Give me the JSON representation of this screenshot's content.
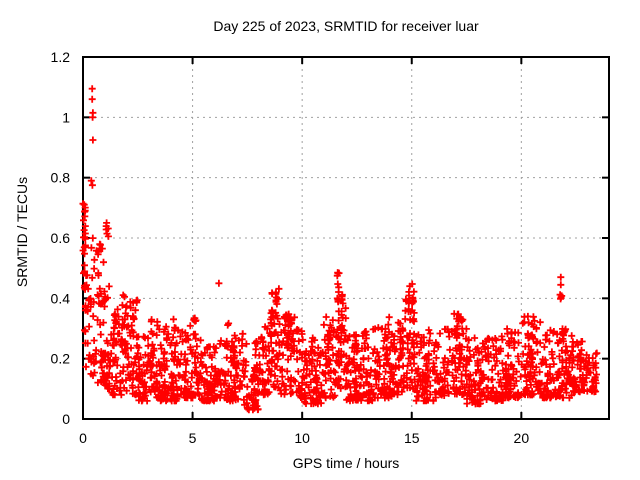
{
  "chart_data": {
    "type": "scatter",
    "title": "Day 225 of 2023, SRMTID for receiver luar",
    "xlabel": "GPS time / hours",
    "ylabel": "SRMTID / TECUs",
    "xlim": [
      0,
      24
    ],
    "ylim": [
      0,
      1.2
    ],
    "xticks": [
      0,
      5,
      10,
      15,
      20
    ],
    "xtick_labels": [
      "0",
      "5",
      "10",
      "15",
      "20"
    ],
    "ytick_values": [
      0,
      0.2,
      0.4,
      0.6,
      0.8,
      1,
      1.2
    ],
    "ytick_labels": [
      "0",
      "0.2",
      "0.4",
      "0.6",
      "0.8",
      "1",
      "1.2"
    ],
    "grid": "dotted",
    "grid_color": "#a0a0a0",
    "legend": "none",
    "marker": "plus",
    "marker_color": "#ff0000",
    "axis_color": "#000000",
    "background_color": "#ffffff",
    "outlier_points_format": "[hour, SRMTID_TECUs] single notable points read from the plot",
    "outlier_points": [
      [
        0.42,
        1.095
      ],
      [
        0.42,
        1.06
      ],
      [
        0.45,
        1.015
      ],
      [
        0.44,
        1.0
      ],
      [
        0.45,
        0.925
      ],
      [
        0.38,
        0.79
      ],
      [
        0.43,
        0.775
      ],
      [
        6.2,
        0.45
      ],
      [
        20.3,
        0.34
      ],
      [
        21.8,
        0.47
      ],
      [
        21.8,
        0.445
      ],
      [
        21.77,
        0.412
      ],
      [
        21.81,
        0.403
      ],
      [
        21.84,
        0.408
      ],
      [
        21.79,
        0.398
      ]
    ],
    "density_bands_format": "[hour_start, hour_end, point_count, y_min, y_max, bottom_bias_power] dense scatter band envelope estimated from the plot",
    "density_bands": [
      [
        0.0,
        0.12,
        26,
        0.2,
        0.72,
        0.55
      ],
      [
        0.1,
        0.35,
        20,
        0.15,
        0.6,
        1.1
      ],
      [
        0.35,
        0.65,
        22,
        0.14,
        0.62,
        1.2
      ],
      [
        0.65,
        1.0,
        34,
        0.12,
        0.58,
        1.5
      ],
      [
        1.0,
        1.3,
        26,
        0.1,
        0.46,
        1.6
      ],
      [
        1.05,
        1.22,
        6,
        0.56,
        0.67,
        1.0
      ],
      [
        1.3,
        1.8,
        40,
        0.08,
        0.38,
        2.0
      ],
      [
        1.8,
        2.1,
        22,
        0.08,
        0.42,
        1.9
      ],
      [
        2.1,
        2.5,
        30,
        0.08,
        0.4,
        1.9
      ],
      [
        2.5,
        3.0,
        46,
        0.06,
        0.3,
        1.8
      ],
      [
        3.0,
        3.5,
        46,
        0.07,
        0.33,
        1.8
      ],
      [
        3.5,
        4.0,
        46,
        0.06,
        0.31,
        1.8
      ],
      [
        4.0,
        4.5,
        44,
        0.06,
        0.3,
        1.9
      ],
      [
        4.5,
        5.0,
        40,
        0.07,
        0.33,
        1.9
      ],
      [
        5.0,
        5.4,
        28,
        0.08,
        0.35,
        1.9
      ],
      [
        5.4,
        6.0,
        50,
        0.06,
        0.24,
        1.6
      ],
      [
        6.0,
        6.5,
        38,
        0.07,
        0.28,
        1.7
      ],
      [
        6.5,
        7.3,
        64,
        0.06,
        0.32,
        1.8
      ],
      [
        7.3,
        8.0,
        58,
        0.03,
        0.26,
        1.6
      ],
      [
        8.0,
        8.5,
        40,
        0.08,
        0.32,
        1.6
      ],
      [
        8.5,
        8.95,
        32,
        0.1,
        0.44,
        1.3
      ],
      [
        8.95,
        9.7,
        52,
        0.08,
        0.35,
        1.4
      ],
      [
        9.7,
        10.1,
        30,
        0.07,
        0.3,
        1.5
      ],
      [
        10.1,
        10.9,
        64,
        0.05,
        0.24,
        1.6
      ],
      [
        10.9,
        11.5,
        44,
        0.07,
        0.35,
        1.8
      ],
      [
        11.5,
        12.0,
        38,
        0.1,
        0.42,
        1.5
      ],
      [
        12.0,
        12.6,
        50,
        0.06,
        0.28,
        1.6
      ],
      [
        12.6,
        13.2,
        50,
        0.06,
        0.3,
        1.6
      ],
      [
        13.2,
        14.1,
        72,
        0.07,
        0.33,
        1.7
      ],
      [
        14.1,
        14.7,
        46,
        0.08,
        0.32,
        1.6
      ],
      [
        14.7,
        15.2,
        36,
        0.1,
        0.43,
        1.2
      ],
      [
        15.2,
        16.0,
        60,
        0.06,
        0.28,
        1.6
      ],
      [
        16.0,
        16.7,
        50,
        0.07,
        0.3,
        1.7
      ],
      [
        16.7,
        17.5,
        60,
        0.08,
        0.35,
        1.5
      ],
      [
        17.5,
        18.3,
        64,
        0.05,
        0.27,
        1.6
      ],
      [
        18.3,
        19.2,
        68,
        0.06,
        0.28,
        1.7
      ],
      [
        19.2,
        20.0,
        64,
        0.07,
        0.3,
        1.7
      ],
      [
        20.0,
        20.9,
        68,
        0.08,
        0.34,
        1.7
      ],
      [
        20.9,
        21.6,
        54,
        0.07,
        0.3,
        1.7
      ],
      [
        21.6,
        22.3,
        54,
        0.07,
        0.3,
        1.6
      ],
      [
        22.3,
        23.0,
        58,
        0.09,
        0.26,
        1.5
      ],
      [
        23.0,
        23.45,
        34,
        0.09,
        0.22,
        1.4
      ]
    ],
    "density_columns_format": "[hour_center, hour_width, point_count, y_min, y_max] vertical spike clusters read from the plot",
    "density_columns": [
      [
        0.75,
        0.25,
        12,
        0.38,
        0.58
      ],
      [
        1.45,
        0.12,
        8,
        0.2,
        0.42
      ],
      [
        1.9,
        0.12,
        8,
        0.15,
        0.42
      ],
      [
        2.25,
        0.18,
        10,
        0.2,
        0.4
      ],
      [
        4.2,
        0.15,
        9,
        0.18,
        0.35
      ],
      [
        5.15,
        0.12,
        8,
        0.15,
        0.35
      ],
      [
        6.85,
        0.25,
        10,
        0.18,
        0.32
      ],
      [
        8.62,
        0.1,
        12,
        0.18,
        0.445
      ],
      [
        8.8,
        0.1,
        8,
        0.2,
        0.42
      ],
      [
        9.35,
        0.4,
        18,
        0.27,
        0.345
      ],
      [
        10.5,
        0.18,
        8,
        0.14,
        0.27
      ],
      [
        11.2,
        0.12,
        8,
        0.18,
        0.31
      ],
      [
        11.65,
        0.1,
        16,
        0.18,
        0.52
      ],
      [
        11.82,
        0.09,
        10,
        0.18,
        0.47
      ],
      [
        12.35,
        0.18,
        8,
        0.15,
        0.29
      ],
      [
        13.9,
        0.14,
        10,
        0.18,
        0.35
      ],
      [
        14.5,
        0.12,
        8,
        0.15,
        0.3
      ],
      [
        14.88,
        0.09,
        9,
        0.22,
        0.46
      ],
      [
        15.05,
        0.11,
        14,
        0.18,
        0.47
      ],
      [
        15.8,
        0.14,
        8,
        0.15,
        0.3
      ],
      [
        17.15,
        0.35,
        16,
        0.18,
        0.34
      ],
      [
        18.0,
        0.14,
        7,
        0.14,
        0.27
      ],
      [
        19.6,
        0.16,
        8,
        0.15,
        0.29
      ],
      [
        20.45,
        0.3,
        14,
        0.18,
        0.33
      ],
      [
        21.9,
        0.16,
        8,
        0.15,
        0.29
      ],
      [
        22.1,
        0.12,
        6,
        0.15,
        0.27
      ]
    ]
  }
}
